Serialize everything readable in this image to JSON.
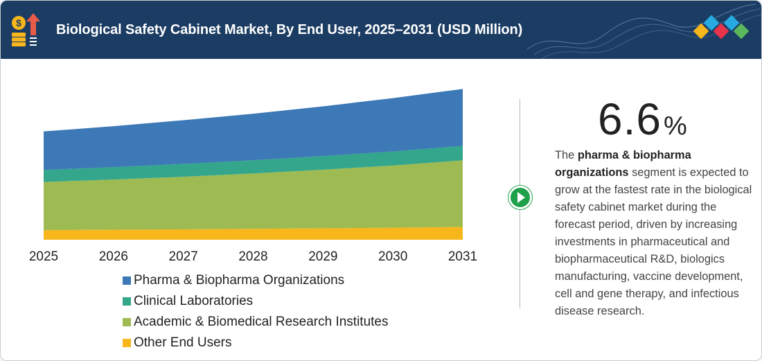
{
  "header": {
    "title": "Biological Safety Cabinet Market, By End User, 2025–2031 (USD Million)",
    "background_color": "#1c3d63",
    "icon": "money-growth-icon",
    "logo": "colored-diamonds-logo"
  },
  "chart_data": {
    "type": "area",
    "stacked": true,
    "categories": [
      "2025",
      "2026",
      "2027",
      "2028",
      "2029",
      "2030",
      "2031"
    ],
    "series": [
      {
        "name": "Other End Users",
        "color": "#f7b71c",
        "values": [
          12,
          12.5,
          13,
          13.6,
          14.3,
          15,
          16
        ]
      },
      {
        "name": "Academic & Biomedical Research Institutes",
        "color": "#9ebb53",
        "values": [
          60,
          62.5,
          65.5,
          69,
          73,
          77.5,
          83
        ]
      },
      {
        "name": "Clinical Laboratories",
        "color": "#33a68c",
        "values": [
          15,
          15.5,
          16,
          16.5,
          17,
          17.5,
          18
        ]
      },
      {
        "name": "Pharma & Biopharma Organizations",
        "color": "#3c79b6",
        "values": [
          48,
          51,
          54.5,
          58,
          62,
          66.5,
          71
        ]
      }
    ],
    "legend_order": [
      {
        "name": "Pharma & Biopharma Organizations",
        "color": "#3c79b6"
      },
      {
        "name": "Clinical Laboratories",
        "color": "#33a68c"
      },
      {
        "name": "Academic & Biomedical Research Institutes",
        "color": "#9ebb53"
      },
      {
        "name": "Other End Users",
        "color": "#f7b71c"
      }
    ],
    "xlabel": "",
    "ylabel": "",
    "ylim": [
      0,
      190
    ],
    "grid": false,
    "legend_position": "bottom"
  },
  "highlight": {
    "value": "6.6",
    "unit": "%",
    "text_pre": "The ",
    "text_bold": "pharma & biopharma organizations",
    "text_post": " segment is expected to grow at the fastest rate in the biological safety cabinet market during the forecast period, driven by increasing investments in pharmaceutical and biopharmaceutical R&D, biologics manufacturing, vaccine development, cell and gene therapy, and infectious disease research."
  },
  "accent_color": "#1fa04a",
  "next_icon": "play-arrow-icon"
}
